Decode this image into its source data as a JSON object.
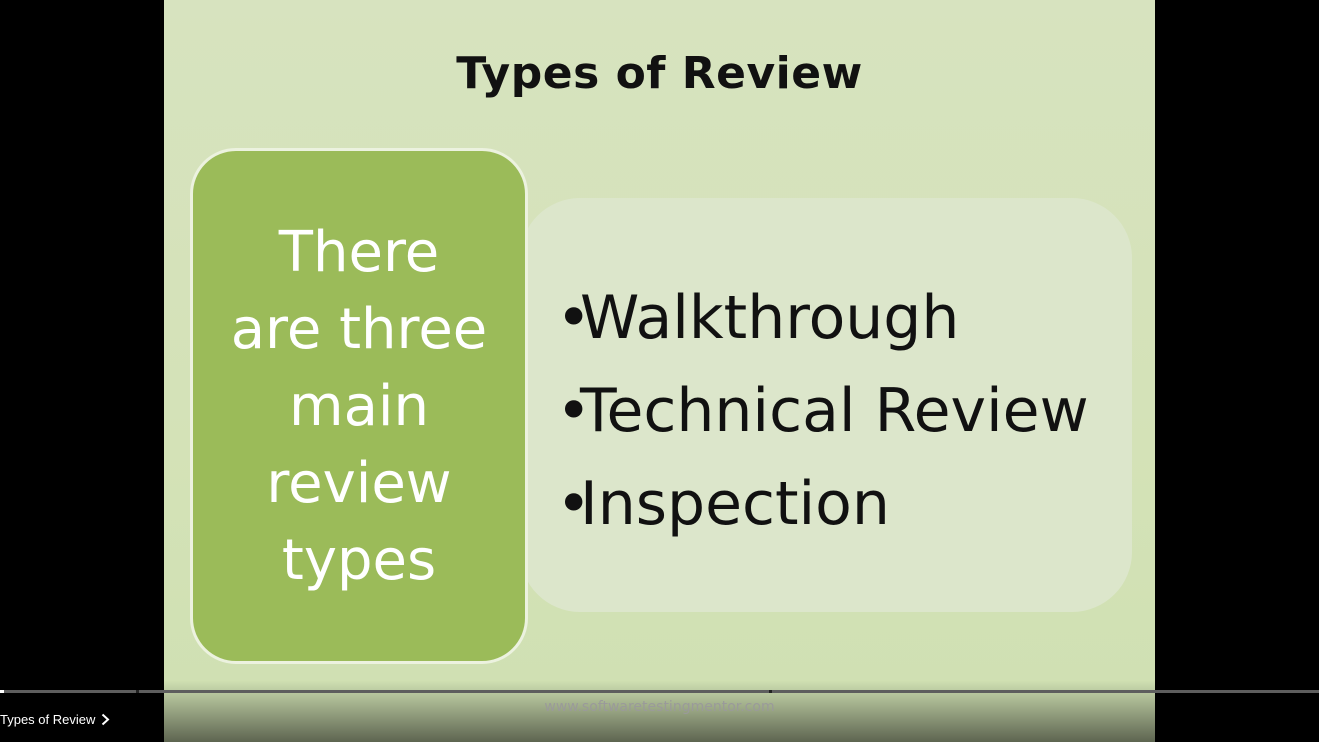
{
  "slide": {
    "title": "Types of Review",
    "box_lines": [
      "There",
      "are three",
      "main",
      "review",
      "types"
    ],
    "bullets": [
      "Walkthrough",
      "Technical Review",
      "Inspection"
    ],
    "bullet_symbol": "•",
    "footer_url": "www.softwaretestingmentor.com"
  },
  "player": {
    "chapter_title": "Types of Review",
    "chapter_icon": "chevron-right-icon",
    "progress_played_fraction": 0.003
  },
  "colors": {
    "slide_bg": "#d7e3bf",
    "box": "#9bbb59",
    "panel": "#dce6cb"
  }
}
